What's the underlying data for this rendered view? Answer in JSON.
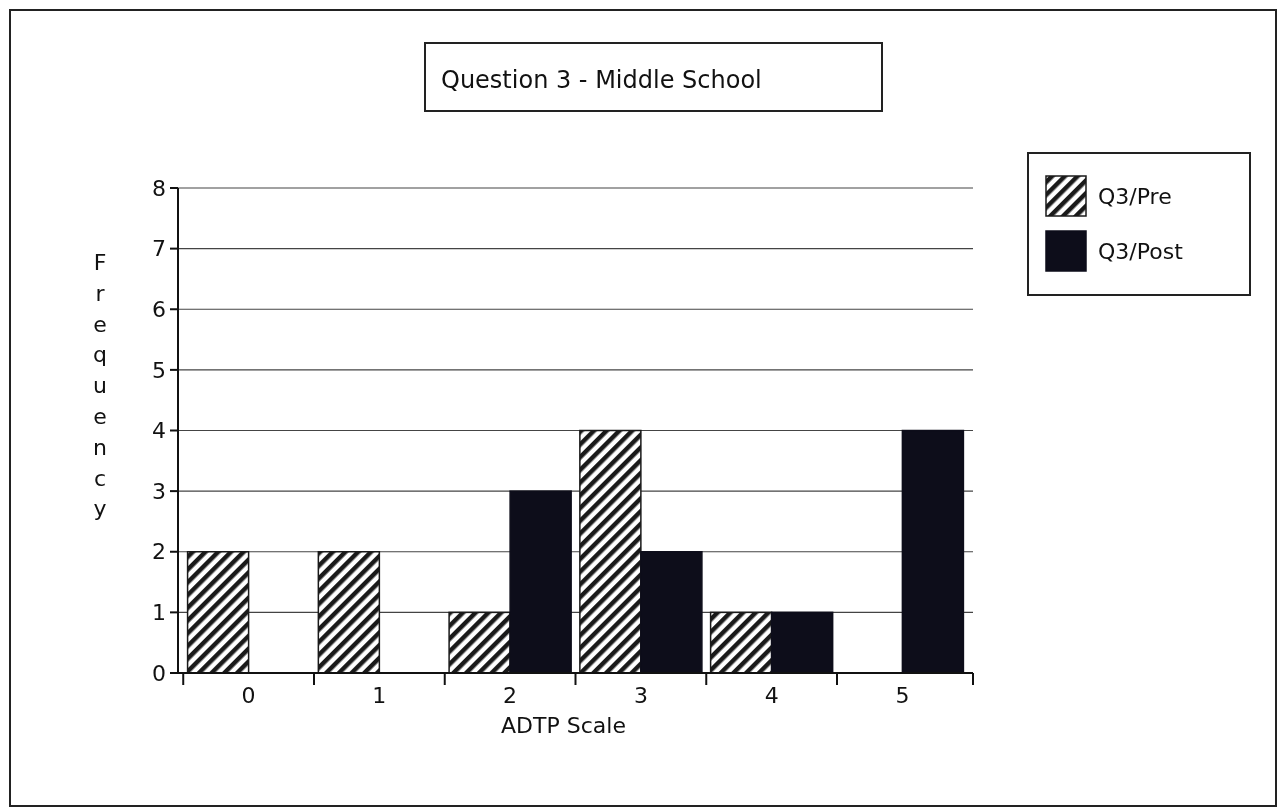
{
  "chart_data": {
    "type": "bar",
    "title": "Question 3 - Middle School",
    "xlabel": "ADTP Scale",
    "ylabel": "Frequency",
    "categories": [
      "0",
      "1",
      "2",
      "3",
      "4",
      "5"
    ],
    "series": [
      {
        "name": "Q3/Pre",
        "color": "#1a1a1a",
        "values": [
          2,
          2,
          1,
          4,
          1,
          0
        ]
      },
      {
        "name": "Q3/Post",
        "color": "#0d0d1a",
        "values": [
          0,
          0,
          3,
          2,
          1,
          4
        ]
      }
    ],
    "ylim": [
      0,
      8
    ],
    "yticks": [
      0,
      1,
      2,
      3,
      4,
      5,
      6,
      7,
      8
    ],
    "grid": "y",
    "legend": "top right"
  }
}
